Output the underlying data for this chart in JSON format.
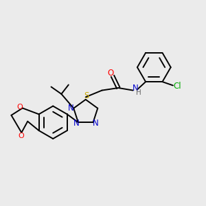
{
  "bg_color": "#ebebeb",
  "bond_color": "#000000",
  "N_color": "#0000cc",
  "O_color": "#ff0000",
  "S_color": "#ccaa00",
  "Cl_color": "#00aa00",
  "H_color": "#666666",
  "C_color": "#000000",
  "font_size": 7.5,
  "xlim": [
    0,
    10
  ],
  "ylim": [
    0,
    10
  ]
}
